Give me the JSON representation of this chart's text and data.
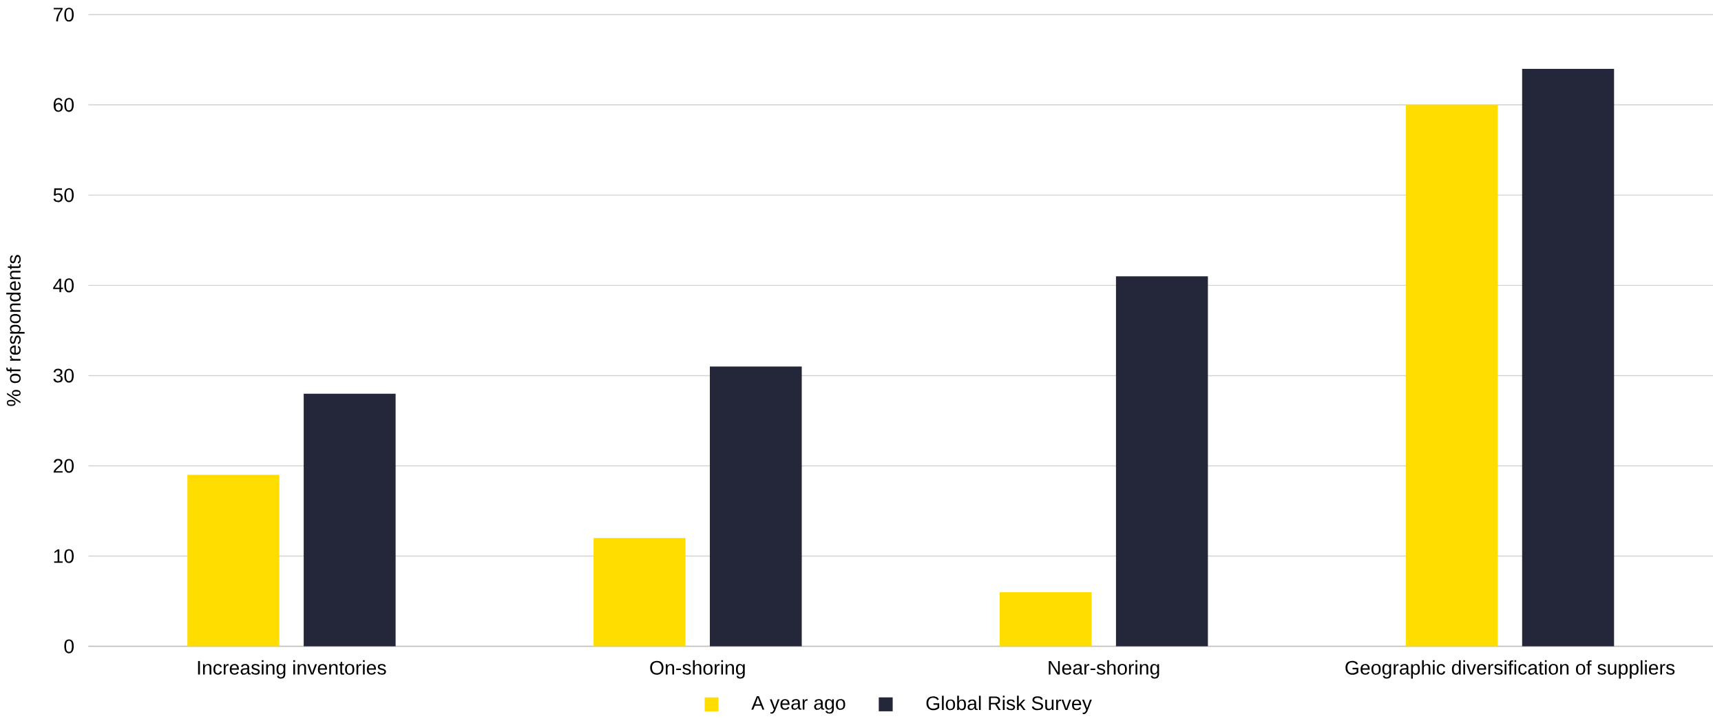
{
  "chart_data": {
    "type": "bar",
    "ylabel": "% of respondents",
    "categories": [
      "Increasing inventories",
      "On-shoring",
      "Near-shoring",
      "Geographic diversification of suppliers"
    ],
    "series": [
      {
        "name": "A year ago",
        "color": "#ffdd00",
        "values": [
          19,
          12,
          6,
          60
        ]
      },
      {
        "name": "Global Risk Survey",
        "color": "#242639",
        "values": [
          28,
          31,
          41,
          64
        ]
      }
    ],
    "ylim": [
      0,
      70
    ],
    "yticks": [
      0,
      10,
      20,
      30,
      40,
      50,
      60,
      70
    ],
    "grid": "y",
    "legend": "bottom"
  }
}
